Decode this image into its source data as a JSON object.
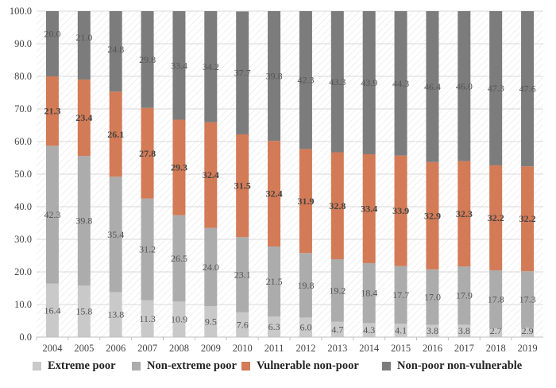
{
  "chart_data": {
    "type": "bar",
    "stacked": true,
    "title": "",
    "xlabel": "",
    "ylabel": "",
    "ylim": [
      0,
      100
    ],
    "yticks": [
      "0.0",
      "10.0",
      "20.0",
      "30.0",
      "40.0",
      "50.0",
      "60.0",
      "70.0",
      "80.0",
      "90.0",
      "100.0"
    ],
    "grid": true,
    "legend_position": "bottom",
    "categories": [
      "2004",
      "2005",
      "2006",
      "2007",
      "2008",
      "2009",
      "2010",
      "2011",
      "2012",
      "2013",
      "2014",
      "2015",
      "2016",
      "2017",
      "2018",
      "2019"
    ],
    "series": [
      {
        "name": "Extreme poor",
        "color": "#c9c9c9",
        "values": [
          16.4,
          15.8,
          13.8,
          11.3,
          10.9,
          9.5,
          7.6,
          6.3,
          6.0,
          4.7,
          4.3,
          4.1,
          3.8,
          3.8,
          2.7,
          2.9
        ],
        "labels": [
          "16.4",
          "15.8",
          "13.8",
          "11.3",
          "10.9",
          "9.5",
          "7.6",
          "6.3",
          "6.0",
          "4.7",
          "4.3",
          "4.1",
          "3.8",
          "3.8",
          "2.7",
          "2.9"
        ]
      },
      {
        "name": "Non-extreme poor",
        "color": "#acacac",
        "values": [
          42.3,
          39.8,
          35.4,
          31.2,
          26.5,
          24.0,
          23.1,
          21.5,
          19.8,
          19.2,
          18.4,
          17.7,
          17.0,
          17.9,
          17.8,
          17.3
        ],
        "labels": [
          "42.3",
          "39.8",
          "35.4",
          "31.2",
          "26.5",
          "24.0",
          "23.1",
          "21.5",
          "19.8",
          "19.2",
          "18.4",
          "17.7",
          "17.0",
          "17.9",
          "17.8",
          "17.3"
        ]
      },
      {
        "name": "Vulnerable non-poor",
        "color": "#d37a56",
        "values": [
          21.3,
          23.4,
          26.1,
          27.8,
          29.3,
          32.4,
          31.5,
          32.4,
          31.9,
          32.8,
          33.4,
          33.9,
          32.9,
          32.3,
          32.2,
          32.2
        ],
        "labels": [
          "21.3",
          "23.4",
          "26.1",
          "27.8",
          "29.3",
          "32.4",
          "31.5",
          "32.4",
          "31.9",
          "32.8",
          "33.4",
          "33.9",
          "32.9",
          "32.3",
          "32.2",
          "32.2"
        ]
      },
      {
        "name": "Non-poor non-vulnerable",
        "color": "#7c7c7c",
        "values": [
          20.0,
          21.0,
          24.8,
          29.8,
          33.4,
          34.2,
          37.7,
          39.8,
          42.3,
          43.3,
          43.9,
          44.3,
          46.4,
          46.0,
          47.3,
          47.6
        ],
        "labels": [
          "20.0",
          "21.0",
          "24.8",
          "29.8",
          "33.4",
          "34.2",
          "37.7",
          "39.8",
          "42.3",
          "43.3",
          "43.9",
          "44.3",
          "46.4",
          "46.0",
          "47.3",
          "47.6"
        ]
      }
    ]
  }
}
